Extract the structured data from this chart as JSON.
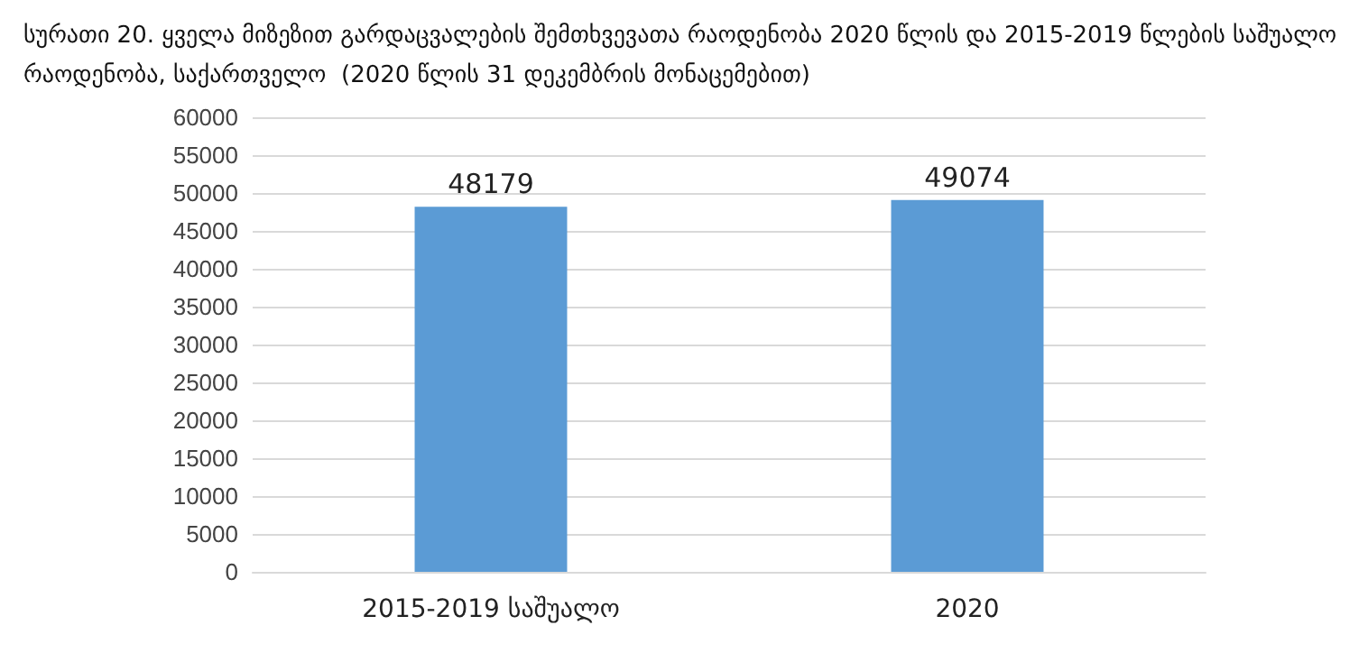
{
  "chart_data": {
    "type": "bar",
    "title": "სურათი 20. ყველა მიზეზით გარდაცვალების შემთხვევათა რაოდენობა 2020 წლის და 2015-2019 წლების საშუალო რაოდენობა, საქართველო  (2020 წლის 31 დეკემბრის მონაცემებით)",
    "categories": [
      "2015-2019 საშუალო",
      "2020"
    ],
    "values": [
      48179,
      49074
    ],
    "color": "#5b9bd5",
    "ylim": [
      0,
      60000
    ],
    "yticks": [
      0,
      5000,
      10000,
      15000,
      20000,
      25000,
      30000,
      35000,
      40000,
      45000,
      50000,
      55000,
      60000
    ],
    "grid": "y",
    "data_labels": true
  }
}
